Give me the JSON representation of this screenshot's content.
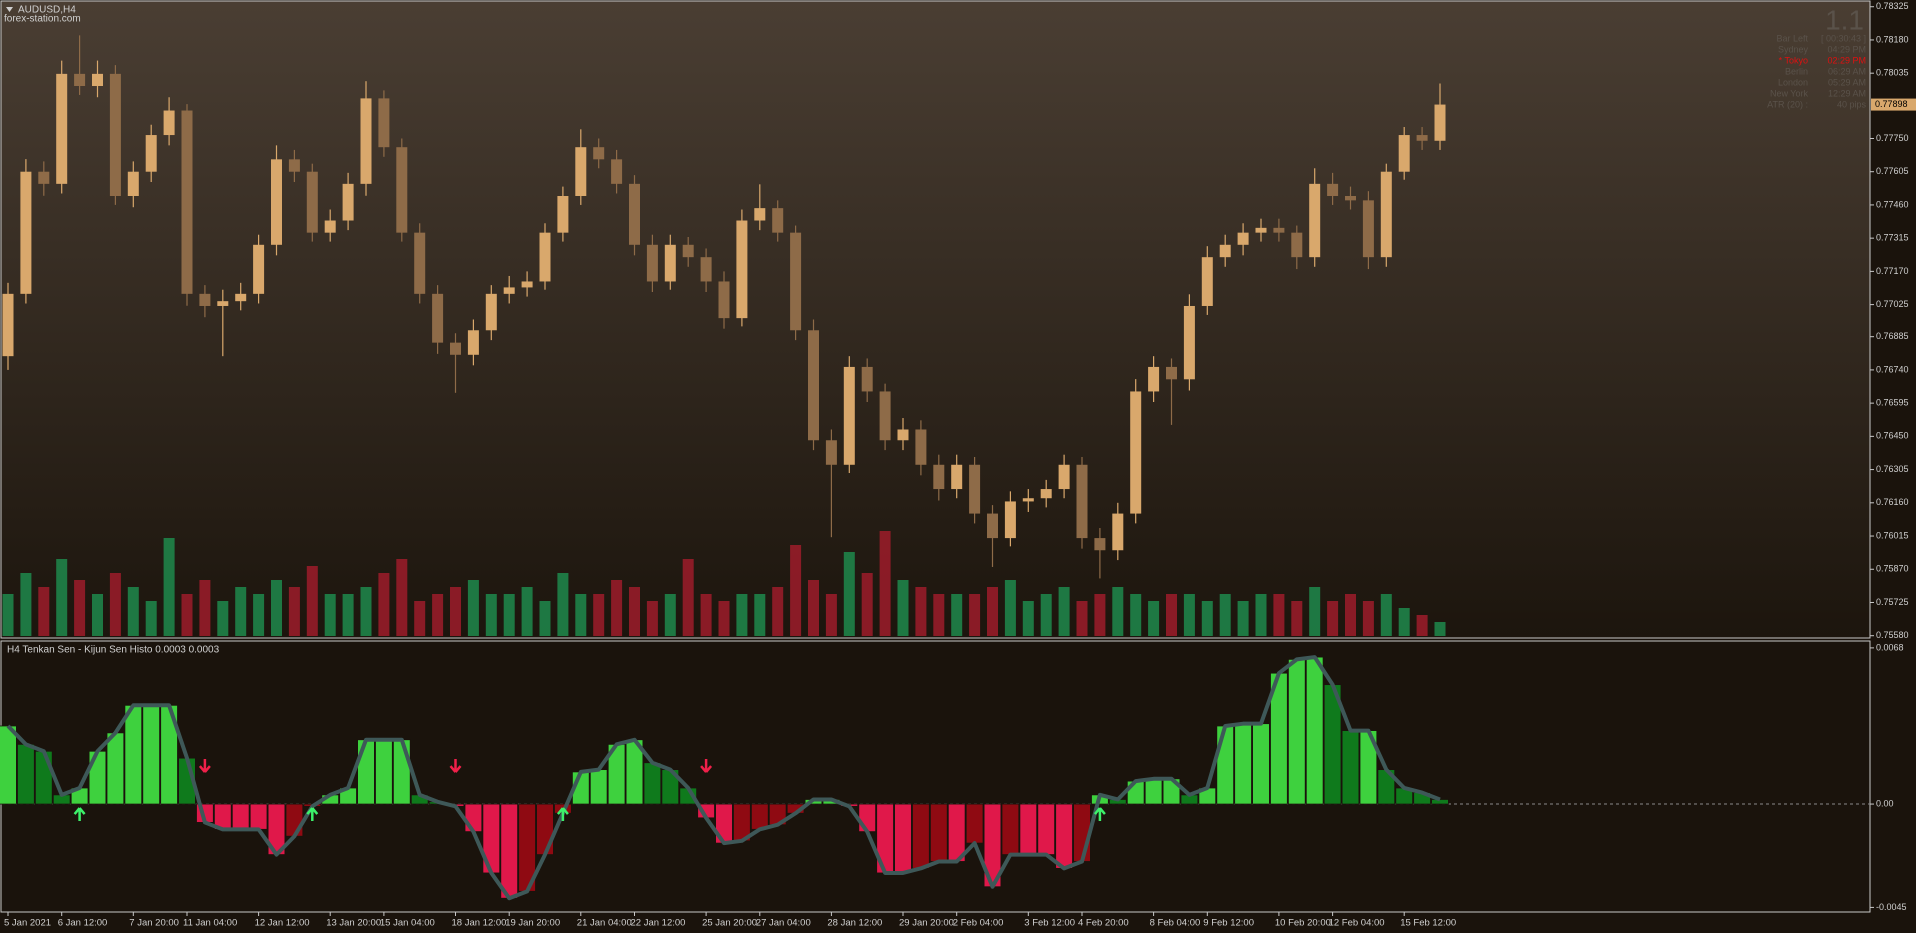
{
  "chart_data": [
    {
      "type": "candlestick",
      "title": "AUDUSD,H4",
      "subtitle": "forex-station.com",
      "categories": [
        "5 Jan 2021",
        null,
        null,
        "6 Jan 12:00",
        null,
        null,
        null,
        "7 Jan 20:00",
        null,
        null,
        "11 Jan 04:00",
        null,
        null,
        null,
        "12 Jan 12:00",
        null,
        null,
        null,
        "13 Jan 20:00",
        null,
        null,
        "15 Jan 04:00",
        null,
        null,
        null,
        "18 Jan 12:00",
        null,
        null,
        "19 Jan 20:00",
        null,
        null,
        null,
        "21 Jan 04:00",
        null,
        null,
        "22 Jan 12:00",
        null,
        null,
        null,
        "25 Jan 20:00",
        null,
        null,
        "27 Jan 04:00",
        null,
        null,
        null,
        "28 Jan 12:00",
        null,
        null,
        null,
        "29 Jan 20:00",
        null,
        null,
        "2 Feb 04:00",
        null,
        null,
        null,
        "3 Feb 12:00",
        null,
        null,
        "4 Feb 20:00",
        null,
        null,
        null,
        "8 Feb 04:00",
        null,
        null,
        "9 Feb 12:00",
        null,
        null,
        null,
        "10 Feb 20:00",
        null,
        null,
        "12 Feb 04:00",
        null,
        null,
        null,
        "15 Feb 12:00",
        null,
        null
      ],
      "open": [
        0.768,
        0.77072,
        0.77605,
        0.77552,
        0.78032,
        0.77979,
        0.78032,
        0.77499,
        0.77605,
        0.77765,
        0.77872,
        0.77072,
        0.77019,
        0.7704,
        0.77072,
        0.77286,
        0.77659,
        0.77605,
        0.77339,
        0.77392,
        0.77552,
        0.77925,
        0.77712,
        0.77339,
        0.77072,
        0.76859,
        0.76806,
        0.76913,
        0.77072,
        0.771,
        0.77126,
        0.77339,
        0.77499,
        0.77712,
        0.77659,
        0.77552,
        0.77286,
        0.77126,
        0.77286,
        0.77232,
        0.77126,
        0.76966,
        0.77392,
        0.77446,
        0.77339,
        0.76913,
        0.76433,
        0.76326,
        0.76753,
        0.76646,
        0.76433,
        0.7648,
        0.76326,
        0.7622,
        0.76326,
        0.76113,
        0.76006,
        0.76166,
        0.7618,
        0.7622,
        0.76326,
        0.76006,
        0.75953,
        0.76113,
        0.76646,
        0.76753,
        0.76699,
        0.77019,
        0.77232,
        0.77286,
        0.77339,
        0.7736,
        0.77339,
        0.77232,
        0.77552,
        0.77499,
        0.7748,
        0.77232,
        0.77605,
        0.77765,
        0.7774
      ],
      "high": [
        0.7712,
        0.7766,
        0.7765,
        0.7809,
        0.782,
        0.7809,
        0.7807,
        0.7765,
        0.7781,
        0.7793,
        0.779,
        0.7711,
        0.7709,
        0.7712,
        0.7733,
        0.7772,
        0.777,
        0.7764,
        0.7744,
        0.776,
        0.78,
        0.7796,
        0.7775,
        0.7738,
        0.7711,
        0.769,
        0.7696,
        0.7711,
        0.7715,
        0.7717,
        0.7738,
        0.7754,
        0.7779,
        0.7775,
        0.777,
        0.7759,
        0.7733,
        0.7733,
        0.7732,
        0.7727,
        0.7717,
        0.7744,
        0.7755,
        0.7748,
        0.7737,
        0.7696,
        0.7648,
        0.768,
        0.7679,
        0.7668,
        0.7653,
        0.7652,
        0.7637,
        0.7637,
        0.7636,
        0.7615,
        0.7621,
        0.7622,
        0.7626,
        0.7637,
        0.7636,
        0.7605,
        0.7616,
        0.767,
        0.768,
        0.7679,
        0.7707,
        0.7728,
        0.7733,
        0.7738,
        0.774,
        0.774,
        0.7737,
        0.7762,
        0.776,
        0.7754,
        0.7752,
        0.7764,
        0.778,
        0.778,
        0.7799
      ],
      "low": [
        0.7674,
        0.7703,
        0.775,
        0.7751,
        0.7794,
        0.7793,
        0.7746,
        0.7745,
        0.7756,
        0.7772,
        0.7702,
        0.7697,
        0.768,
        0.77,
        0.7703,
        0.7724,
        0.7756,
        0.773,
        0.773,
        0.7735,
        0.775,
        0.7767,
        0.773,
        0.7703,
        0.7681,
        0.7664,
        0.7676,
        0.7687,
        0.7703,
        0.7706,
        0.7709,
        0.773,
        0.7746,
        0.7762,
        0.7751,
        0.7724,
        0.7708,
        0.7709,
        0.7719,
        0.7708,
        0.7692,
        0.7693,
        0.7735,
        0.773,
        0.7687,
        0.7639,
        0.7601,
        0.7629,
        0.766,
        0.7639,
        0.7639,
        0.7628,
        0.7617,
        0.7618,
        0.7607,
        0.7588,
        0.7597,
        0.7612,
        0.7614,
        0.7618,
        0.7596,
        0.7583,
        0.7591,
        0.7607,
        0.766,
        0.765,
        0.7665,
        0.7698,
        0.7719,
        0.7724,
        0.773,
        0.773,
        0.7718,
        0.7719,
        0.7746,
        0.7744,
        0.7718,
        0.7719,
        0.7757,
        0.777,
        0.777
      ],
      "close": [
        0.77072,
        0.77605,
        0.77552,
        0.78032,
        0.77979,
        0.78032,
        0.77499,
        0.77605,
        0.77765,
        0.77872,
        0.77072,
        0.77019,
        0.7704,
        0.77072,
        0.77286,
        0.77659,
        0.77605,
        0.77339,
        0.77392,
        0.77552,
        0.77925,
        0.77712,
        0.77339,
        0.77072,
        0.76859,
        0.76806,
        0.76913,
        0.77072,
        0.771,
        0.77126,
        0.77339,
        0.77499,
        0.77712,
        0.77659,
        0.77552,
        0.77286,
        0.77126,
        0.77286,
        0.77232,
        0.77126,
        0.76966,
        0.77392,
        0.77446,
        0.77339,
        0.76913,
        0.76433,
        0.76326,
        0.76753,
        0.76646,
        0.76433,
        0.7648,
        0.76326,
        0.7622,
        0.76326,
        0.76113,
        0.76006,
        0.76166,
        0.7618,
        0.7622,
        0.76326,
        0.76006,
        0.75953,
        0.76113,
        0.76646,
        0.76753,
        0.76699,
        0.77019,
        0.77232,
        0.77286,
        0.77339,
        0.7736,
        0.77339,
        0.77232,
        0.77552,
        0.77499,
        0.7748,
        0.77232,
        0.77605,
        0.77765,
        0.7774,
        0.77898
      ],
      "volume": [
        30,
        45,
        35,
        55,
        40,
        30,
        45,
        35,
        25,
        70,
        30,
        40,
        25,
        35,
        30,
        40,
        35,
        50,
        30,
        30,
        35,
        45,
        55,
        25,
        30,
        35,
        40,
        30,
        30,
        35,
        25,
        45,
        30,
        30,
        40,
        35,
        25,
        30,
        55,
        30,
        25,
        30,
        30,
        35,
        65,
        40,
        30,
        60,
        45,
        75,
        40,
        35,
        30,
        30,
        30,
        35,
        40,
        25,
        30,
        35,
        25,
        30,
        35,
        30,
        25,
        30,
        30,
        25,
        30,
        25,
        30,
        30,
        25,
        35,
        25,
        30,
        25,
        30,
        20,
        15,
        10
      ],
      "volume_lim": [
        0,
        100
      ],
      "ylim": [
        0.7557,
        0.7835
      ],
      "yticks": [
        0.78325,
        {
          "value": 0.7818,
          "label": "0.78180"
        },
        0.78035,
        {
          "value": 0.7775,
          "label": "0.77750"
        },
        0.77605,
        {
          "value": 0.7746,
          "label": "0.77460"
        },
        0.77315,
        {
          "value": 0.7717,
          "label": "0.77170"
        },
        0.77025,
        0.76885,
        {
          "value": 0.7674,
          "label": "0.76740"
        },
        0.76595,
        {
          "value": 0.7645,
          "label": "0.76450"
        },
        0.76305,
        {
          "value": 0.7616,
          "label": "0.76160"
        },
        0.76015,
        {
          "value": 0.7587,
          "label": "0.75870"
        },
        0.75725,
        {
          "value": 0.7558,
          "label": "0.75580"
        }
      ],
      "last_price": 0.77898,
      "up_color": "#d9a86c",
      "down_color": "#8e6b48",
      "volume_up_color": "#1f8a4c",
      "volume_down_color": "#9e1c2a"
    },
    {
      "type": "histogram",
      "title": "H4  Tenkan Sen - Kijun Sen Histo 0.0003 0.0003",
      "values": [
        0.0034,
        0.0026,
        0.0023,
        0.0004,
        0.0007,
        0.0023,
        0.0031,
        0.0043,
        0.0043,
        0.0043,
        0.002,
        -0.0008,
        -0.0011,
        -0.0011,
        -0.0011,
        -0.0022,
        -0.0014,
        -0.0001,
        0.0004,
        0.0007,
        0.0028,
        0.0028,
        0.0028,
        0.0004,
        0.0001,
        -0.0001,
        -0.0012,
        -0.003,
        -0.0041,
        -0.0038,
        -0.0022,
        -0.0004,
        0.0014,
        0.0015,
        0.0026,
        0.0028,
        0.0018,
        0.0015,
        0.0007,
        -0.0006,
        -0.0017,
        -0.0016,
        -0.0011,
        -0.0009,
        -0.0004,
        0.0002,
        0.0002,
        -0.0001,
        -0.0012,
        -0.003,
        -0.003,
        -0.0028,
        -0.0025,
        -0.0025,
        -0.0017,
        -0.0036,
        -0.0022,
        -0.0022,
        -0.0022,
        -0.0028,
        -0.0025,
        0.0004,
        0.0002,
        0.001,
        0.0011,
        0.0011,
        0.0004,
        0.0007,
        0.0034,
        0.0035,
        0.0035,
        0.0057,
        0.0063,
        0.0064,
        0.0052,
        0.0032,
        0.0032,
        0.0015,
        0.0007,
        0.0005,
        0.0002
      ],
      "ylim": [
        -0.0047,
        0.0071
      ],
      "yticks": [
        0.0068,
        {
          "value": 0,
          "label": "0.00"
        },
        -0.0045
      ],
      "up_arrows": [
        4,
        17,
        31,
        61
      ],
      "down_arrows": [
        11,
        25,
        39
      ],
      "colors": {
        "up_rising": "#3ed13e",
        "up_falling": "#0f7a1c",
        "down_falling": "#e0184a",
        "down_rising": "#8f0a12",
        "line": "#3e5858",
        "up_arrow": "#3cf06a",
        "down_arrow": "#f0204a"
      }
    }
  ],
  "overlay": {
    "version": "1.1",
    "rows": [
      {
        "label": "Bar Left",
        "value": "[ 00:30:43 ]",
        "color": "#5a524a"
      },
      {
        "label": "Sydney",
        "value": "04:29 PM",
        "color": "#5a524a"
      },
      {
        "label": "* Tokyo",
        "value": "02:29 PM",
        "color": "#e01010"
      },
      {
        "label": "Berlin",
        "value": "06:29 AM",
        "color": "#5a524a"
      },
      {
        "label": "London",
        "value": "05:29 AM",
        "color": "#5a524a"
      },
      {
        "label": "New York",
        "value": "12:29 AM",
        "color": "#5a524a"
      },
      {
        "label": "ATR (20) :",
        "value": "40 pips",
        "color": "#5a524a"
      }
    ]
  }
}
